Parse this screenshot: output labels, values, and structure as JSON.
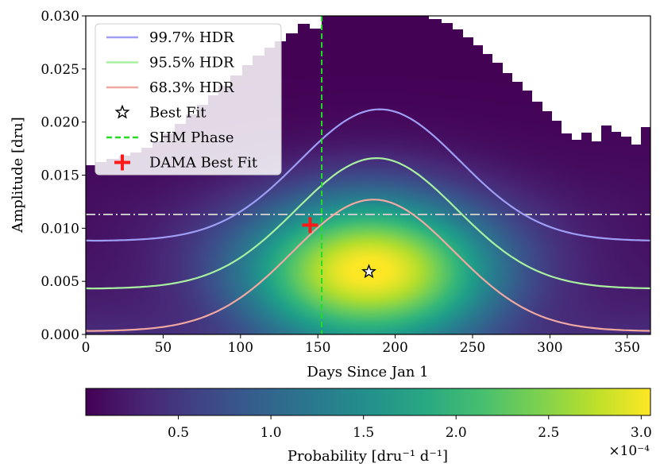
{
  "chart_data": {
    "type": "heatmap",
    "title": "",
    "xlabel": "Days Since Jan 1",
    "ylabel": "Amplitude [dru]",
    "xlim": [
      0,
      365
    ],
    "ylim": [
      0,
      0.03
    ],
    "x_ticks": [
      0,
      50,
      100,
      150,
      200,
      250,
      300,
      350
    ],
    "x_tick_labels": [
      "0",
      "50",
      "100",
      "150",
      "200",
      "250",
      "300",
      "350"
    ],
    "y_ticks": [
      0,
      0.005,
      0.01,
      0.015,
      0.02,
      0.025,
      0.03
    ],
    "y_tick_labels": [
      "0.000",
      "0.005",
      "0.010",
      "0.015",
      "0.020",
      "0.025",
      "0.030"
    ],
    "density_peak": {
      "phase": 183,
      "amplitude": 0.0062
    },
    "contours": [
      {
        "name": "99.7% HDR",
        "color": "#9e9ef5",
        "min_amp": 0.0088,
        "max_amp": 0.0212,
        "peak_day": 190
      },
      {
        "name": "95.5% HDR",
        "color": "#a8f0a0",
        "min_amp": 0.0043,
        "max_amp": 0.0166,
        "peak_day": 188
      },
      {
        "name": "68.3% HDR",
        "color": "#f0a8a0",
        "min_amp": 0.0003,
        "max_amp": 0.0127,
        "peak_day": 186
      }
    ],
    "best_fit": {
      "label": "Best Fit",
      "x": 183,
      "y": 0.0059
    },
    "shm_phase": {
      "label": "SHM Phase",
      "x": 152.5,
      "color": "#22dd22"
    },
    "dama_best_fit": {
      "label": "DAMA Best Fit",
      "x": 145,
      "y": 0.0103,
      "color": "#ff1a1a"
    },
    "reference_line": {
      "y": 0.0113,
      "color": "#c8c8c8"
    },
    "colorbar": {
      "label": "Probability [dru⁻¹ d⁻¹]",
      "range": [
        0,
        3.05
      ],
      "ticks": [
        0.5,
        1.0,
        1.5,
        2.0,
        2.5,
        3.0
      ],
      "tick_labels": [
        "0.5",
        "1.0",
        "1.5",
        "2.0",
        "2.5",
        "3.0"
      ],
      "multiplier": "×10⁻⁴",
      "colormap": "viridis"
    },
    "legend": {
      "position": "upper-left",
      "entries": [
        {
          "label": "99.7% HDR",
          "marker": "line",
          "color": "#9e9ef5"
        },
        {
          "label": "95.5% HDR",
          "marker": "line",
          "color": "#a8f0a0"
        },
        {
          "label": "68.3% HDR",
          "marker": "line",
          "color": "#f0a8a0"
        },
        {
          "label": "Best Fit",
          "marker": "star",
          "color": "#000000"
        },
        {
          "label": "SHM Phase",
          "marker": "dashed",
          "color": "#22dd22"
        },
        {
          "label": "DAMA Best Fit",
          "marker": "plus",
          "color": "#ff1a1a"
        }
      ]
    }
  }
}
